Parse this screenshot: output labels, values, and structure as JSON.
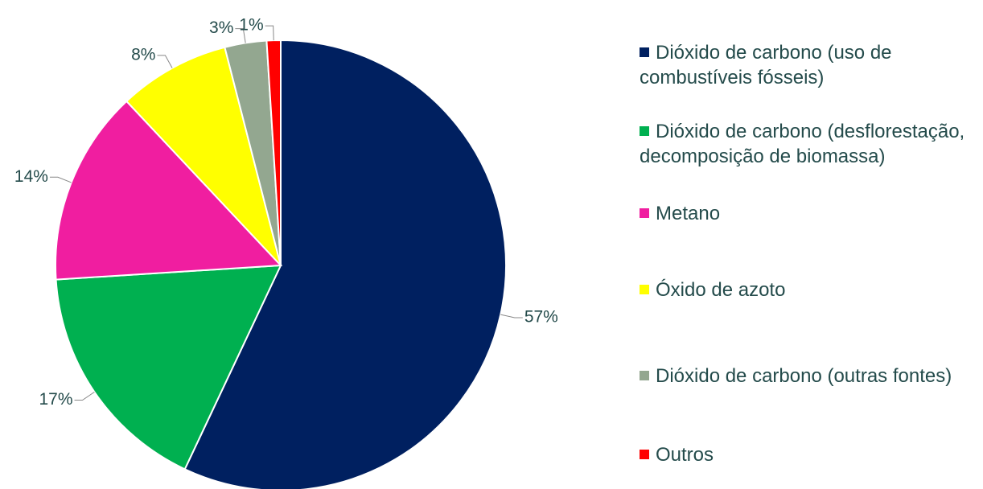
{
  "chart_data": {
    "type": "pie",
    "categories": [
      "Dióxido de carbono (uso de combustíveis fósseis)",
      "Dióxido de carbono (desflorestação, decomposição de biomassa)",
      "Metano",
      "Óxido de azoto",
      "Dióxido de carbono (outras fontes)",
      "Outros"
    ],
    "values": [
      57,
      17,
      14,
      8,
      3,
      1
    ],
    "value_labels": [
      "57%",
      "17%",
      "14%",
      "8%",
      "3%",
      "1%"
    ],
    "colors": [
      "#002060",
      "#00b050",
      "#f01ea0",
      "#ffff00",
      "#93a790",
      "#ff0000"
    ],
    "legend": "right"
  }
}
